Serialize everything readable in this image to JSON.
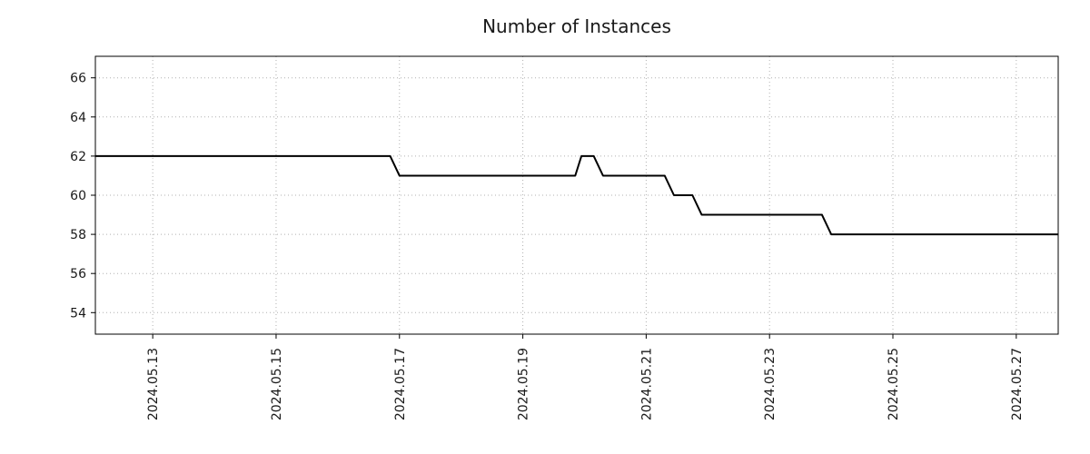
{
  "chart_data": {
    "type": "line",
    "title": "Number of Instances",
    "subtitle": "",
    "legend": "none",
    "grid": true,
    "step_style": true,
    "colors": {
      "line": "#000000",
      "grid": "#b0b0b0",
      "axis": "#000000",
      "text": "#1a1a1a",
      "background": "#ffffff"
    },
    "line_width": 2,
    "x_axis": {
      "label": "",
      "tick_labels": [
        "2024.05.13",
        "2024.05.15",
        "2024.05.17",
        "2024.05.19",
        "2024.05.21",
        "2024.05.23",
        "2024.05.25",
        "2024.05.27"
      ],
      "tick_positions_days": [
        0,
        2,
        4,
        6,
        8,
        10,
        12,
        14
      ],
      "range_days": [
        -0.93,
        14.68
      ],
      "tick_label_rotation_deg": 90
    },
    "y_axis": {
      "label": "",
      "tick_labels": [
        "54",
        "56",
        "58",
        "60",
        "62",
        "64",
        "66"
      ],
      "tick_values": [
        54,
        56,
        58,
        60,
        62,
        64,
        66
      ],
      "range": [
        52.9,
        67.1
      ]
    },
    "series": [
      {
        "name": "number-of-instances",
        "points_day_value": [
          [
            -0.93,
            62
          ],
          [
            3.85,
            62
          ],
          [
            4.0,
            61
          ],
          [
            6.85,
            61
          ],
          [
            6.95,
            62
          ],
          [
            7.15,
            62
          ],
          [
            7.3,
            61
          ],
          [
            8.3,
            61
          ],
          [
            8.45,
            60
          ],
          [
            8.75,
            60
          ],
          [
            8.9,
            59
          ],
          [
            10.85,
            59
          ],
          [
            11.0,
            58
          ],
          [
            14.68,
            58
          ]
        ]
      }
    ]
  }
}
